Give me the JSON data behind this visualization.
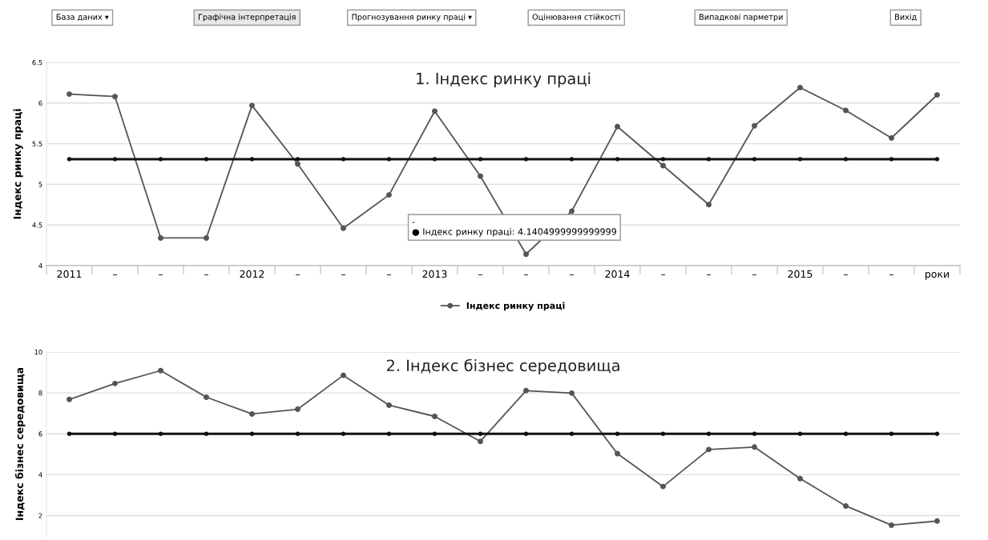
{
  "chart_data": [
    {
      "type": "line",
      "title": "1. Індекс ринку праці",
      "ylabel": "Індекс ринку праці",
      "categories": [
        "2011",
        "–",
        "–",
        "–",
        "2012",
        "–",
        "–",
        "–",
        "2013",
        "–",
        "–",
        "–",
        "2014",
        "–",
        "–",
        "–",
        "2015",
        "–",
        "–",
        "роки"
      ],
      "series": [
        {
          "name": "Індекс ринку праці",
          "color": "#555555",
          "values": [
            6.11,
            6.08,
            4.34,
            4.34,
            5.97,
            5.25,
            4.46,
            4.87,
            5.9,
            5.1,
            4.14,
            4.67,
            5.71,
            5.23,
            4.75,
            5.72,
            6.19,
            5.91,
            5.57,
            6.1
          ]
        },
        {
          "color": "#111111",
          "values": [
            5.31,
            5.31,
            5.31,
            5.31,
            5.31,
            5.31,
            5.31,
            5.31,
            5.31,
            5.31,
            5.31,
            5.31,
            5.31,
            5.31,
            5.31,
            5.31,
            5.31,
            5.31,
            5.31,
            5.31
          ]
        }
      ],
      "ylim": [
        4,
        6.5
      ],
      "yticks": [
        4,
        4.5,
        5,
        5.5,
        6,
        6.5
      ],
      "grid": "y",
      "legend": "bottom",
      "marker": "circle",
      "annotations": [
        "База даних ▾",
        "Графічна інтерпретація",
        "Прогнозування ринку праці ▾",
        "Оцінювання стійкості",
        "Випадкові парметри",
        "Вихід",
        "-\n● Індекс ринку праці: 4.1404999999999999"
      ]
    },
    {
      "type": "line",
      "title": "2. Індекс бізнес середовища",
      "ylabel": "Індекс бізнес середовища",
      "categories": [
        null,
        null,
        null,
        null,
        null,
        null,
        null,
        null,
        null,
        null,
        null,
        null,
        null,
        null,
        null,
        null,
        null,
        null,
        null,
        null
      ],
      "series": [
        {
          "color": "#555555",
          "values": [
            7.68,
            8.46,
            9.09,
            7.79,
            6.97,
            7.2,
            8.86,
            7.4,
            6.85,
            5.63,
            8.11,
            7.99,
            5.03,
            3.42,
            5.23,
            5.35,
            3.81,
            2.47,
            1.53,
            1.73
          ]
        },
        {
          "color": "#111111",
          "values": [
            6,
            6,
            6,
            6,
            6,
            6,
            6,
            6,
            6,
            6,
            6,
            6,
            6,
            6,
            6,
            6,
            6,
            6,
            6,
            6
          ]
        }
      ],
      "ylim": [
        1,
        10
      ],
      "yticks": [
        2,
        4,
        6,
        8,
        10
      ],
      "grid": "y",
      "marker": "circle",
      "tick_labels": "y"
    }
  ]
}
